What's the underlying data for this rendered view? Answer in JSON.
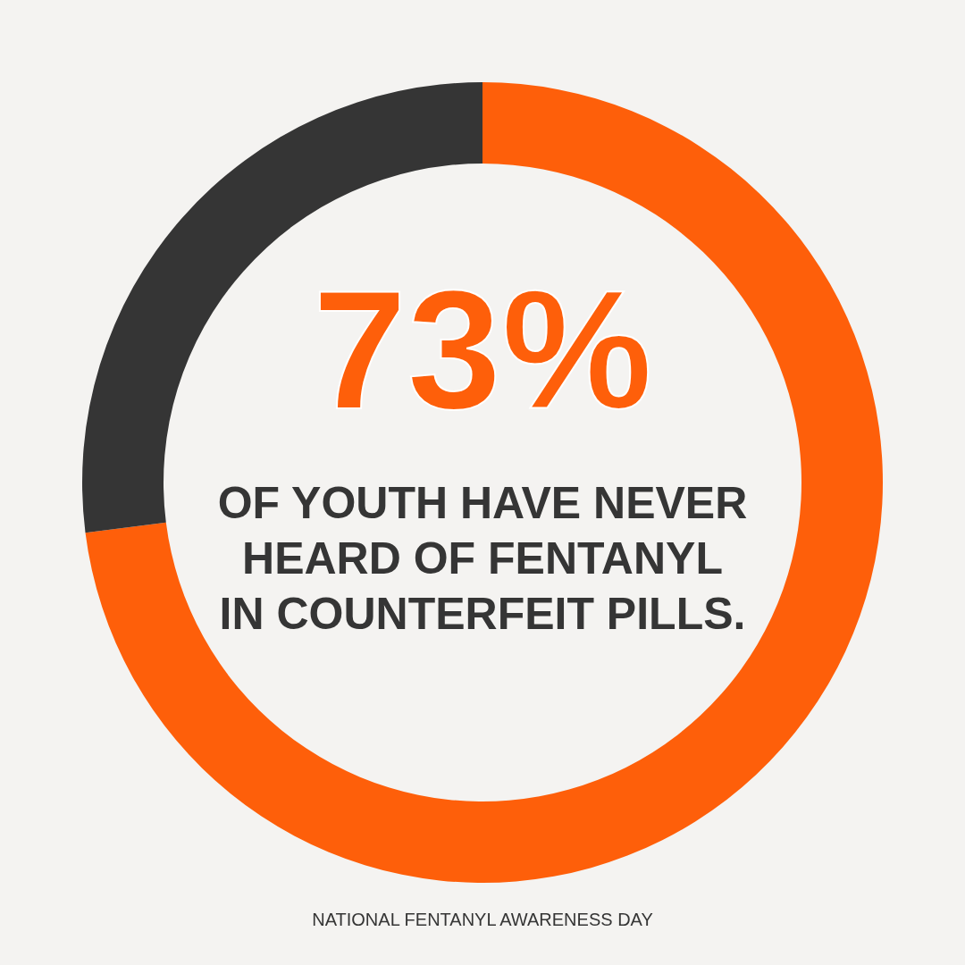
{
  "chart_data": {
    "type": "donut",
    "categories": [
      null,
      null
    ],
    "values": [
      73,
      27
    ],
    "colors": [
      "#fe5f0a",
      "#353535"
    ],
    "value_labels": [
      "73%",
      null
    ],
    "annotations": [
      "OF YOUTH HAVE NEVER\nHEARD OF FENTANYL\nIN COUNTERFEIT PILLS.",
      "NATIONAL FENTANYL AWARENESS DAY"
    ]
  }
}
